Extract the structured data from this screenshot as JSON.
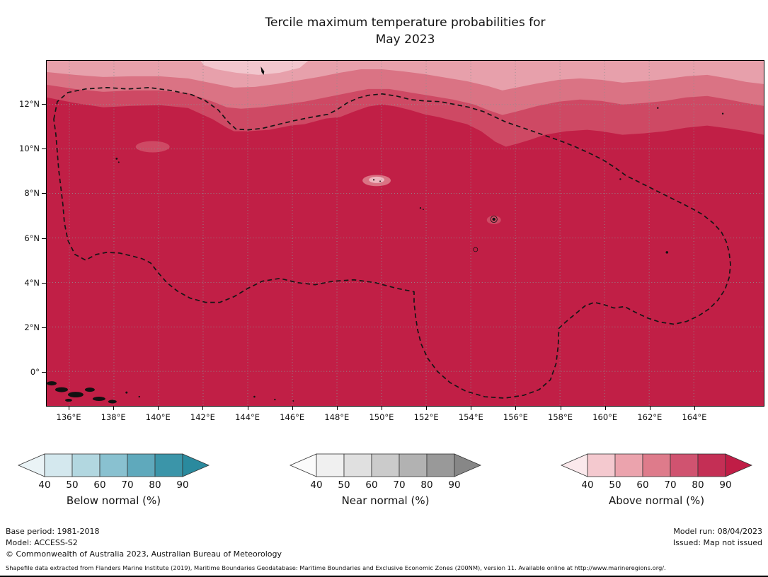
{
  "title": {
    "line1": "Tercile maximum temperature probabilities for",
    "line2": "May 2023"
  },
  "map": {
    "lat_ticks": [
      "12°N",
      "10°N",
      "8°N",
      "6°N",
      "4°N",
      "2°N",
      "0°"
    ],
    "lon_ticks": [
      "136°E",
      "138°E",
      "140°E",
      "142°E",
      "144°E",
      "146°E",
      "148°E",
      "150°E",
      "152°E",
      "154°E",
      "156°E",
      "158°E",
      "160°E",
      "162°E",
      "164°E"
    ],
    "colors": {
      "prob_gt_90": "#c11f46",
      "prob_80_90": "#ce4964",
      "prob_70_80": "#da7384",
      "prob_60_70": "#e7a0ab",
      "prob_50_60": "#f2c6cd",
      "gridline": "#8f8f8f",
      "boundary": "#151515",
      "island": "#111111"
    }
  },
  "legends": [
    {
      "label": "Below normal (%)",
      "values": [
        "40",
        "50",
        "60",
        "70",
        "80",
        "90"
      ],
      "colors": [
        "#eaf3f6",
        "#d4e8ee",
        "#b2d7e0",
        "#89c1d0",
        "#5fa9bc",
        "#3b95a9",
        "#2a8a9e"
      ]
    },
    {
      "label": "Near normal (%)",
      "values": [
        "40",
        "50",
        "60",
        "70",
        "80",
        "90"
      ],
      "colors": [
        "#fbfbfb",
        "#f0f0f0",
        "#e0e0e0",
        "#cbcbcb",
        "#b2b2b2",
        "#999999",
        "#878787"
      ]
    },
    {
      "label": "Above normal (%)",
      "values": [
        "40",
        "50",
        "60",
        "70",
        "80",
        "90"
      ],
      "colors": [
        "#fbe9ec",
        "#f4c9cf",
        "#eba3ad",
        "#de7b8b",
        "#d05370",
        "#c42f55",
        "#c01d46"
      ]
    }
  ],
  "footer": {
    "base_period": "Base period: 1981-2018",
    "model": "Model: ACCESS-S2",
    "copyright": "© Commonwealth of Australia 2023, Australian Bureau of Meteorology",
    "model_run": "Model run: 08/04/2023",
    "issued": "Issued: Map not issued",
    "shapefile_note": "Shapefile data extracted from Flanders Marine Institute (2019), Maritime Boundaries Geodatabase: Maritime Boundaries and Exclusive Economic Zones (200NM), version 11. Available online at http://www.marineregions.org/."
  }
}
